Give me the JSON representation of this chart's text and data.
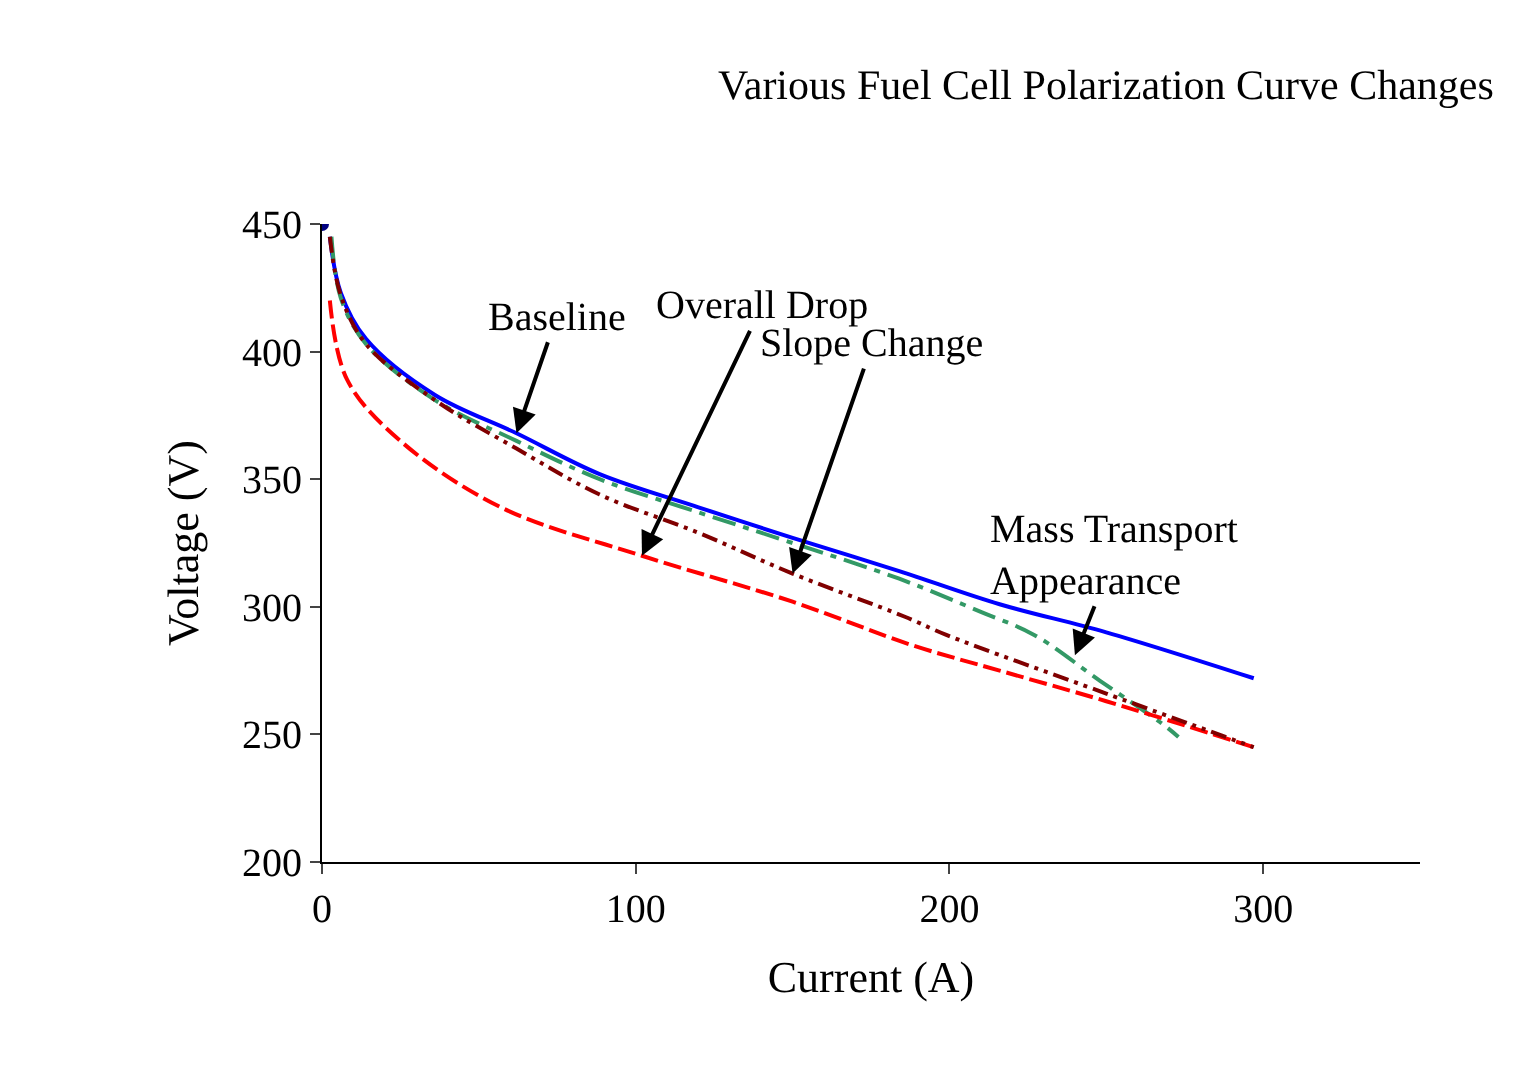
{
  "chart_data": {
    "type": "line",
    "title": "Various Fuel Cell Polarization Curve Changes",
    "xlabel": "Current (A)",
    "ylabel": "Voltage (V)",
    "xlim": [
      0,
      350
    ],
    "xticks": [
      0,
      100,
      200,
      300
    ],
    "ylim": [
      200,
      450
    ],
    "yticks": [
      200,
      250,
      300,
      350,
      400,
      450
    ],
    "series": [
      {
        "color": "#0000ff",
        "line_style": "solid",
        "x": [
          2.5,
          6,
          14,
          36,
          62,
          88.5,
          120,
          150,
          184,
          216,
          250,
          297
        ],
        "values": [
          445,
          423,
          405,
          383,
          368,
          352,
          339,
          327,
          314,
          301,
          290,
          272
        ]
      },
      {
        "color": "#339966",
        "line_style": "dashdot",
        "x": [
          3,
          6,
          14,
          36,
          62,
          88.5,
          120,
          150,
          184,
          210,
          227,
          248,
          268,
          273
        ],
        "values": [
          445,
          421,
          403,
          381,
          365,
          350,
          337,
          325,
          311,
          298,
          289,
          271,
          254,
          249
        ]
      },
      {
        "color": "#800000",
        "line_style": "dashdotdot",
        "x": [
          2.5,
          6,
          14,
          36,
          62,
          88.5,
          120,
          150,
          186,
          199,
          250,
          297
        ],
        "values": [
          445,
          422,
          403,
          381,
          362,
          344,
          329,
          313,
          296,
          289,
          266,
          245
        ]
      },
      {
        "color": "#ff0000",
        "line_style": "dashed",
        "x": [
          2.5,
          8,
          25,
          57,
          102,
          150,
          188,
          216,
          250,
          297
        ],
        "values": [
          420,
          389,
          365,
          339,
          320,
          302,
          285,
          275,
          263,
          245
        ]
      },
      {
        "type": "scatter",
        "color": "#000080",
        "marker": "circle",
        "x": [
          0
        ],
        "values": [
          450
        ]
      }
    ],
    "annotations": [
      {
        "text": "Baseline",
        "x": 62,
        "y": 368
      },
      {
        "text": "Overall Drop",
        "x": 102,
        "y": 320
      },
      {
        "text": "Slope Change",
        "x": 150,
        "y": 313
      },
      {
        "text": "Mass Transport\nAppearance",
        "x": 240,
        "y": 281
      }
    ]
  }
}
